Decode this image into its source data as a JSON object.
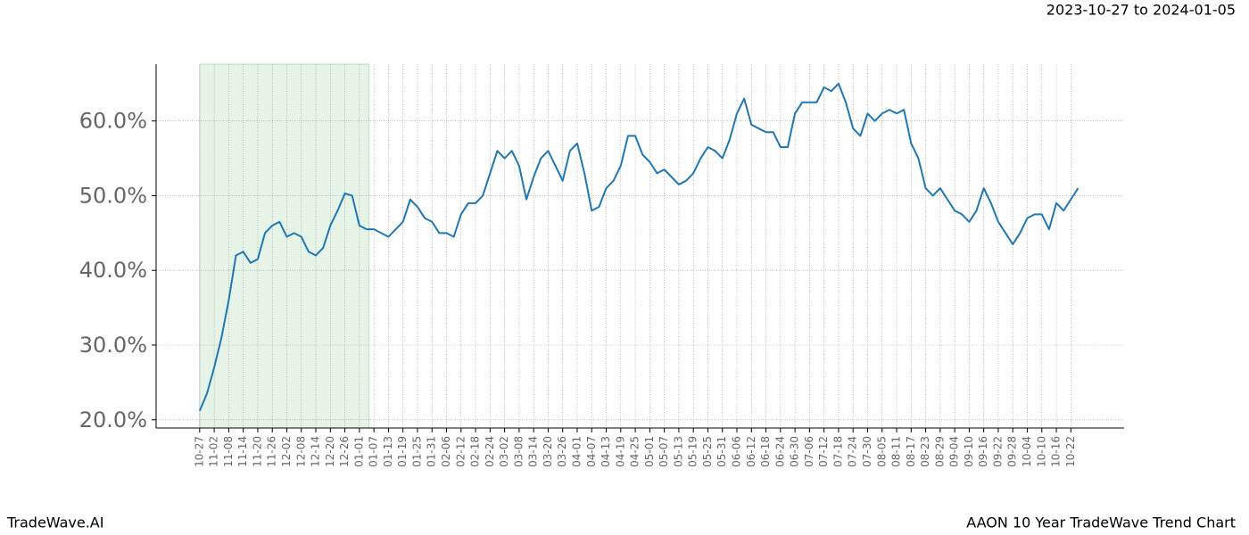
{
  "chart_data": {
    "type": "line",
    "title": "2023-10-27 to 2024-01-05",
    "brand": "TradeWave.AI",
    "subtitle": "AAON 10 Year TradeWave Trend Chart",
    "highlight": [
      0,
      70
    ],
    "highlight_color": "#c8e6c9",
    "grid": true,
    "xlim": [
      -18,
      382
    ],
    "ylim": [
      18.9,
      67.6
    ],
    "yticks": [
      {
        "value": 20,
        "label": "20.0%"
      },
      {
        "value": 30,
        "label": "30.0%"
      },
      {
        "value": 40,
        "label": "40.0%"
      },
      {
        "value": 50,
        "label": "50.0%"
      },
      {
        "value": 60,
        "label": "60.0%"
      }
    ],
    "xticks": [
      {
        "value": 0,
        "label": "10-27"
      },
      {
        "value": 6,
        "label": "11-02"
      },
      {
        "value": 12,
        "label": "11-08"
      },
      {
        "value": 18,
        "label": "11-14"
      },
      {
        "value": 24,
        "label": "11-20"
      },
      {
        "value": 30,
        "label": "11-26"
      },
      {
        "value": 36,
        "label": "12-02"
      },
      {
        "value": 42,
        "label": "12-08"
      },
      {
        "value": 48,
        "label": "12-14"
      },
      {
        "value": 54,
        "label": "12-20"
      },
      {
        "value": 60,
        "label": "12-26"
      },
      {
        "value": 66,
        "label": "01-01"
      },
      {
        "value": 72,
        "label": "01-07"
      },
      {
        "value": 78,
        "label": "01-13"
      },
      {
        "value": 84,
        "label": "01-19"
      },
      {
        "value": 90,
        "label": "01-25"
      },
      {
        "value": 96,
        "label": "01-31"
      },
      {
        "value": 102,
        "label": "02-06"
      },
      {
        "value": 108,
        "label": "02-12"
      },
      {
        "value": 114,
        "label": "02-18"
      },
      {
        "value": 120,
        "label": "02-24"
      },
      {
        "value": 126,
        "label": "03-02"
      },
      {
        "value": 132,
        "label": "03-08"
      },
      {
        "value": 138,
        "label": "03-14"
      },
      {
        "value": 144,
        "label": "03-20"
      },
      {
        "value": 150,
        "label": "03-26"
      },
      {
        "value": 156,
        "label": "04-01"
      },
      {
        "value": 162,
        "label": "04-07"
      },
      {
        "value": 168,
        "label": "04-13"
      },
      {
        "value": 174,
        "label": "04-19"
      },
      {
        "value": 180,
        "label": "04-25"
      },
      {
        "value": 186,
        "label": "05-01"
      },
      {
        "value": 192,
        "label": "05-07"
      },
      {
        "value": 198,
        "label": "05-13"
      },
      {
        "value": 204,
        "label": "05-19"
      },
      {
        "value": 210,
        "label": "05-25"
      },
      {
        "value": 216,
        "label": "05-31"
      },
      {
        "value": 222,
        "label": "06-06"
      },
      {
        "value": 228,
        "label": "06-12"
      },
      {
        "value": 234,
        "label": "06-18"
      },
      {
        "value": 240,
        "label": "06-24"
      },
      {
        "value": 246,
        "label": "06-30"
      },
      {
        "value": 252,
        "label": "07-06"
      },
      {
        "value": 258,
        "label": "07-12"
      },
      {
        "value": 264,
        "label": "07-18"
      },
      {
        "value": 270,
        "label": "07-24"
      },
      {
        "value": 276,
        "label": "07-30"
      },
      {
        "value": 282,
        "label": "08-05"
      },
      {
        "value": 288,
        "label": "08-11"
      },
      {
        "value": 294,
        "label": "08-17"
      },
      {
        "value": 300,
        "label": "08-23"
      },
      {
        "value": 306,
        "label": "08-29"
      },
      {
        "value": 312,
        "label": "09-04"
      },
      {
        "value": 318,
        "label": "09-10"
      },
      {
        "value": 324,
        "label": "09-16"
      },
      {
        "value": 330,
        "label": "09-22"
      },
      {
        "value": 336,
        "label": "09-28"
      },
      {
        "value": 342,
        "label": "10-04"
      },
      {
        "value": 348,
        "label": "10-10"
      },
      {
        "value": 354,
        "label": "10-16"
      },
      {
        "value": 360,
        "label": "10-22"
      }
    ],
    "x": [
      0,
      3,
      6,
      9,
      12,
      15,
      18,
      21,
      24,
      27,
      30,
      33,
      36,
      39,
      42,
      45,
      48,
      51,
      54,
      57,
      60,
      63,
      66,
      69,
      72,
      75,
      78,
      81,
      84,
      87,
      90,
      93,
      96,
      99,
      102,
      105,
      108,
      111,
      114,
      117,
      120,
      123,
      126,
      129,
      132,
      135,
      138,
      141,
      144,
      147,
      150,
      153,
      156,
      159,
      162,
      165,
      168,
      171,
      174,
      177,
      180,
      183,
      186,
      189,
      192,
      195,
      198,
      201,
      204,
      207,
      210,
      213,
      216,
      219,
      222,
      225,
      228,
      231,
      234,
      237,
      240,
      243,
      246,
      249,
      252,
      255,
      258,
      261,
      264,
      267,
      270,
      273,
      276,
      279,
      282,
      285,
      288,
      291,
      294,
      297,
      300,
      303,
      306,
      309,
      312,
      315,
      318,
      321,
      324,
      327,
      330,
      333,
      336,
      339,
      342,
      345,
      348,
      351,
      354,
      357,
      360,
      363
    ],
    "series": [
      {
        "color": "#1f77b4",
        "values": [
          21.2,
          23.5,
          27,
          31,
          36,
          42,
          42.5,
          41,
          41.5,
          45,
          46,
          46.5,
          44.5,
          45,
          44.5,
          42.5,
          42,
          43,
          46,
          48,
          50.3,
          50,
          46,
          45.5,
          45.5,
          45,
          44.5,
          45.5,
          46.5,
          49.5,
          48.5,
          47,
          46.5,
          45,
          45,
          44.5,
          47.5,
          49,
          49,
          50,
          53,
          56,
          55,
          56,
          54,
          49.5,
          52.5,
          55,
          56,
          54,
          52,
          56,
          57,
          53,
          48,
          48.5,
          51,
          52,
          54,
          58,
          58,
          55.5,
          54.5,
          53,
          53.5,
          52.5,
          51.5,
          52,
          53,
          55,
          56.5,
          56,
          55,
          57.5,
          61,
          63,
          59.5,
          59,
          58.5,
          58.5,
          56.5,
          56.5,
          61,
          62.5,
          62.5,
          62.5,
          64.5,
          64,
          65,
          62.5,
          59,
          58,
          61,
          60,
          61,
          61.5,
          61,
          61.5,
          57,
          55,
          51,
          50,
          51,
          49.5,
          48,
          47.5,
          46.5,
          48,
          51,
          49,
          46.5,
          45,
          43.5,
          45,
          47,
          47.5,
          47.5,
          45.5,
          49,
          48,
          49.5,
          51
        ]
      }
    ]
  }
}
